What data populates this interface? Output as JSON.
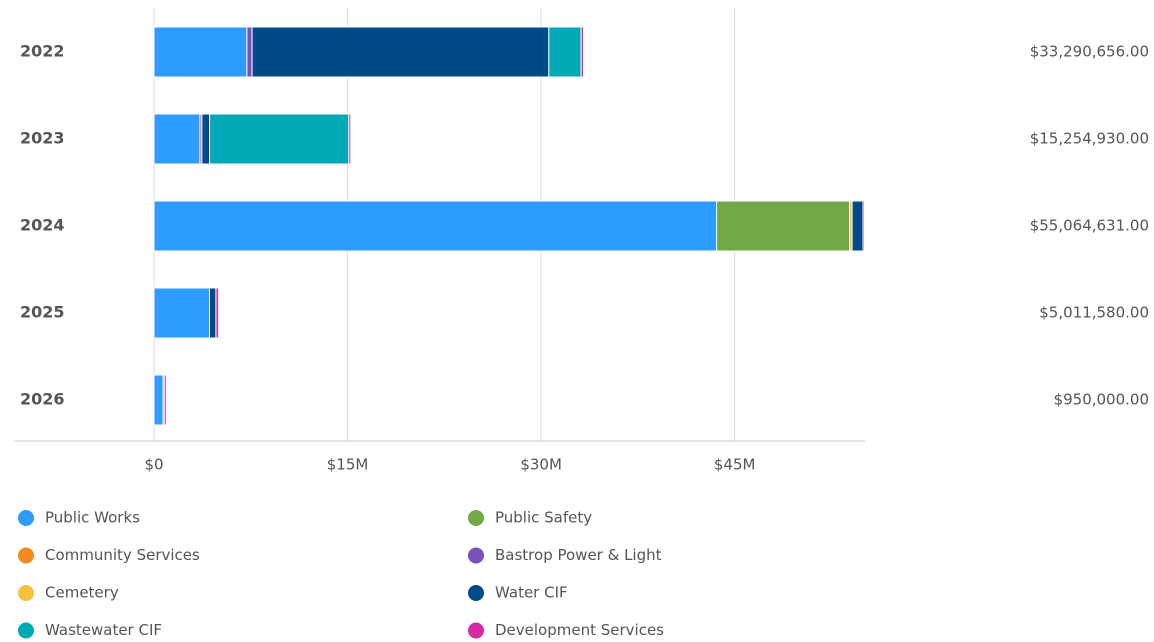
{
  "chart_data": {
    "type": "stacked-barh",
    "categories": [
      "2022",
      "2023",
      "2024",
      "2025",
      "2026"
    ],
    "series": [
      {
        "name": "Public Works",
        "color": "#2e9bff",
        "values": [
          7200000,
          3560000,
          43600000,
          4300000,
          700000
        ]
      },
      {
        "name": "Public Safety",
        "color": "#72a846",
        "values": [
          0,
          0,
          10300000,
          0,
          0
        ]
      },
      {
        "name": "Community Services",
        "color": "#f58a1f",
        "values": [
          0,
          0,
          0,
          0,
          0
        ]
      },
      {
        "name": "Bastrop Power & Light",
        "color": "#7a4fbe",
        "values": [
          400000,
          150000,
          0,
          0,
          100000
        ]
      },
      {
        "name": "Cemetery",
        "color": "#f8c13a",
        "values": [
          0,
          0,
          200000,
          0,
          0
        ]
      },
      {
        "name": "Water CIF",
        "color": "#004a87",
        "values": [
          23000000,
          600000,
          850000,
          500000,
          0
        ]
      },
      {
        "name": "Wastewater CIF",
        "color": "#00a9b5",
        "values": [
          2500000,
          10790000,
          0,
          0,
          0
        ]
      },
      {
        "name": "Development Services",
        "color": "#d42aa4",
        "values": [
          190000,
          150000,
          110000,
          210000,
          150000
        ]
      }
    ],
    "totals": {
      "values": [
        33290656,
        15254930,
        55064631,
        5011580,
        950000
      ],
      "value_labels": [
        "$33,290,656.00",
        "$15,254,930.00",
        "$55,064,631.00",
        "$5,011,580.00",
        "$950,000.00"
      ]
    },
    "xlim": [
      0,
      55100000
    ],
    "xticks": [
      {
        "value": 0,
        "label": "$0"
      },
      {
        "value": 15000000,
        "label": "$15M"
      },
      {
        "value": 30000000,
        "label": "$30M"
      },
      {
        "value": 45000000,
        "label": "$45M"
      }
    ],
    "grid": true,
    "legend": "bottom"
  }
}
